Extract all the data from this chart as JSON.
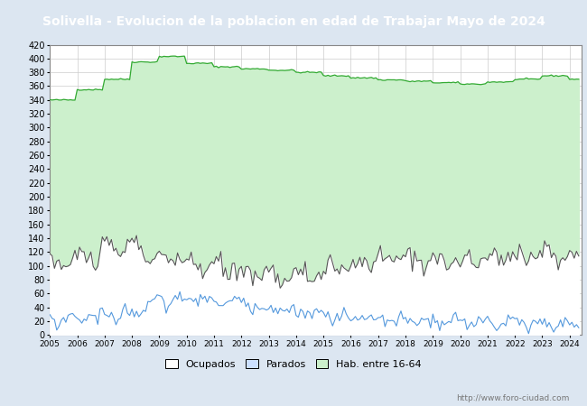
{
  "title": "Solivella - Evolucion de la poblacion en edad de Trabajar Mayo de 2024",
  "title_bg": "#4472c4",
  "title_color": "#ffffff",
  "title_fontsize": 10,
  "ylim": [
    0,
    420
  ],
  "ytick_step": 20,
  "url": "http://www.foro-ciudad.com",
  "legend_labels": [
    "Ocupados",
    "Parados",
    "Hab. entre 16-64"
  ],
  "color_hab_fill": "#ccf0cc",
  "color_hab_line": "#33aa33",
  "color_ocupados_fill": "#ffffff",
  "color_ocupados_line": "#555555",
  "color_parados_fill": "#cce0ff",
  "color_parados_line": "#5599dd",
  "bg_color": "#dce6f1",
  "plot_bg": "#ffffff",
  "grid_color": "#cccccc",
  "hab_annual_years": [
    2005,
    2006,
    2007,
    2008,
    2009,
    2010,
    2011,
    2012,
    2013,
    2014,
    2015,
    2016,
    2017,
    2018,
    2019,
    2020,
    2021,
    2022,
    2023,
    2024
  ],
  "hab_annual_vals": [
    340,
    355,
    370,
    395,
    403,
    393,
    388,
    385,
    383,
    380,
    375,
    372,
    369,
    367,
    365,
    363,
    366,
    370,
    375,
    370
  ],
  "ocu_annual_means": [
    100,
    110,
    120,
    130,
    110,
    105,
    98,
    93,
    88,
    85,
    90,
    98,
    108,
    112,
    110,
    103,
    110,
    116,
    118,
    112
  ],
  "par_annual_means": [
    22,
    25,
    28,
    32,
    48,
    52,
    50,
    46,
    40,
    35,
    28,
    25,
    22,
    20,
    18,
    18,
    20,
    18,
    16,
    16
  ],
  "ocu_noise_scale": 8,
  "par_noise_scale": 5,
  "hab_noise_scale": 0.5
}
